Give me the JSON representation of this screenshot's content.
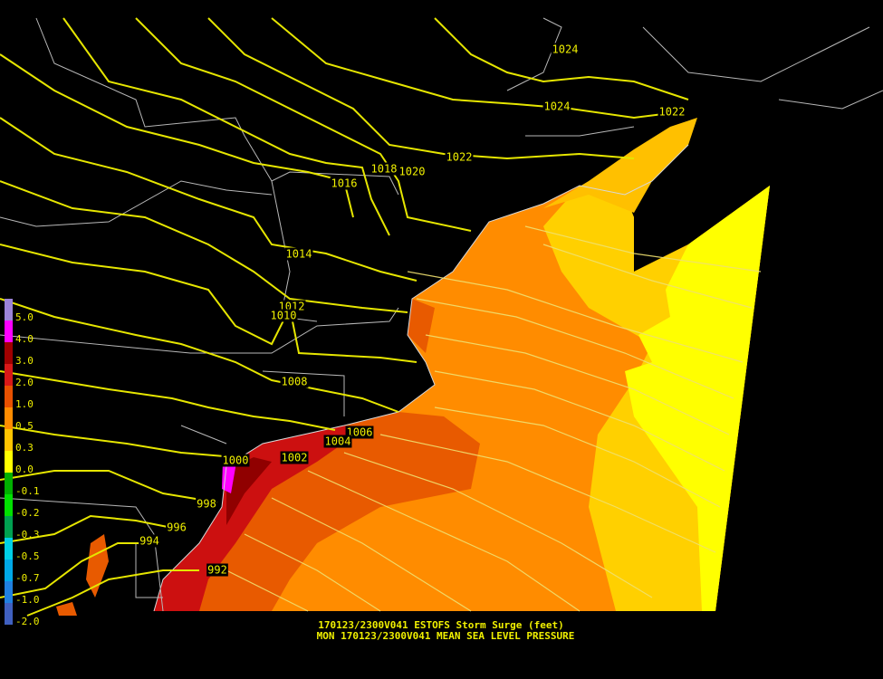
{
  "caption": {
    "line1": "170123/2300V041 ESTOFS Storm Surge (feet)",
    "line2": "MON 170123/2300V041 MEAN SEA LEVEL PRESSURE"
  },
  "legend": {
    "labels": [
      "5.0",
      "4.0",
      "3.0",
      "2.0",
      "1.0",
      "0.5",
      "0.3",
      "0.0",
      "-0.1",
      "-0.2",
      "-0.3",
      "-0.5",
      "-0.7",
      "-1.0",
      "-2.0"
    ],
    "colors": [
      "#9c84d8",
      "#ff00ff",
      "#a00000",
      "#d81818",
      "#e85000",
      "#ff8c00",
      "#ffc400",
      "#ffff00",
      "#00b000",
      "#00e000",
      "#00a050",
      "#00d0e8",
      "#00a8e8",
      "#2080e0",
      "#4060c0"
    ]
  },
  "isobar_labels": [
    "1024",
    "1024",
    "1022",
    "1022",
    "1020",
    "1018",
    "1016",
    "1014",
    "1012",
    "1010",
    "1008",
    "1006",
    "1004",
    "1002",
    "1000",
    "998",
    "996",
    "994",
    "992"
  ]
}
